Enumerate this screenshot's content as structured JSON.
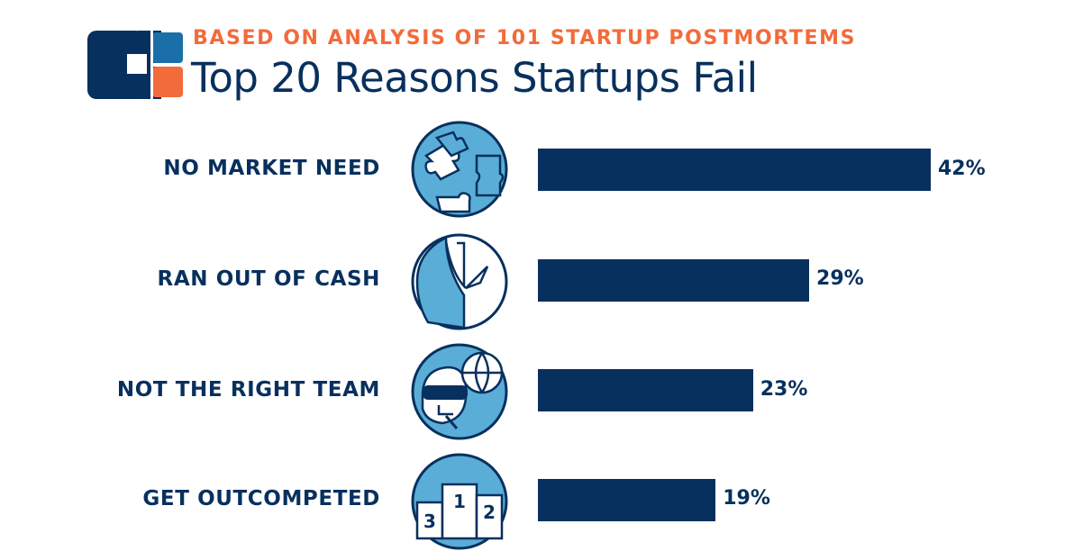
{
  "header": {
    "subtitle": "BASED ON ANALYSIS OF 101 STARTUP POSTMORTEMS",
    "title": "Top 20 Reasons Startups Fail"
  },
  "colors": {
    "navy": "#08305e",
    "orange": "#f26b3a",
    "blue": "#1a6fa8",
    "icon_fill": "#5aadd6"
  },
  "icons": [
    "puzzle-icon",
    "pocket-icon",
    "vr-headset-icon",
    "podium-icon"
  ],
  "podium_numbers": [
    "3",
    "1",
    "2"
  ],
  "chart_data": {
    "type": "bar",
    "orientation": "horizontal",
    "categories": [
      "NO MARKET NEED",
      "RAN OUT OF CASH",
      "NOT THE RIGHT TEAM",
      "GET OUTCOMPETED"
    ],
    "values": [
      42,
      29,
      23,
      19
    ],
    "value_labels": [
      "42%",
      "29%",
      "23%",
      "19%"
    ],
    "unit": "%",
    "xlim": [
      0,
      100
    ],
    "grid": false,
    "legend": "none"
  }
}
